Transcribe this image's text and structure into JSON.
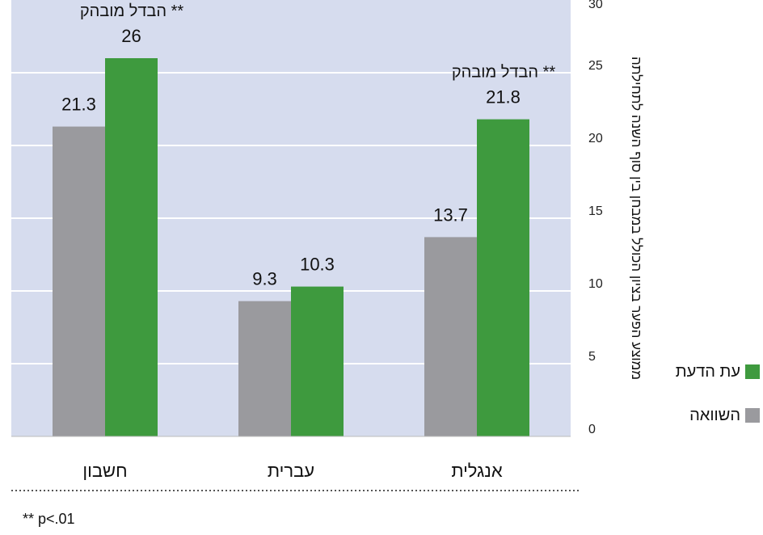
{
  "chart_data": {
    "type": "bar",
    "categories": [
      "חשבון",
      "עברית",
      "אנגלית"
    ],
    "series": [
      {
        "name": "השוואה",
        "color": "#9a9a9e",
        "values": [
          21.3,
          9.3,
          13.7
        ]
      },
      {
        "name": "עת הדעת",
        "color": "#3e9a3e",
        "values": [
          26,
          10.3,
          21.8
        ]
      }
    ],
    "ylabel": "ממוצע הפער בציון הכולל במבחן בין סוף השנה לתחילתה",
    "ylim": [
      0,
      30
    ],
    "yticks": [
      0,
      5,
      10,
      15,
      20,
      25,
      30
    ],
    "y_axis_side": "right",
    "grid": true,
    "plot_background": "#d6dcee",
    "legend_position": "right",
    "annotations": [
      {
        "category": "חשבון",
        "text": "הבדל מובהק **"
      },
      {
        "category": "אנגלית",
        "text": "הבדל מובהק **"
      }
    ],
    "footnote": "** p<.01"
  }
}
